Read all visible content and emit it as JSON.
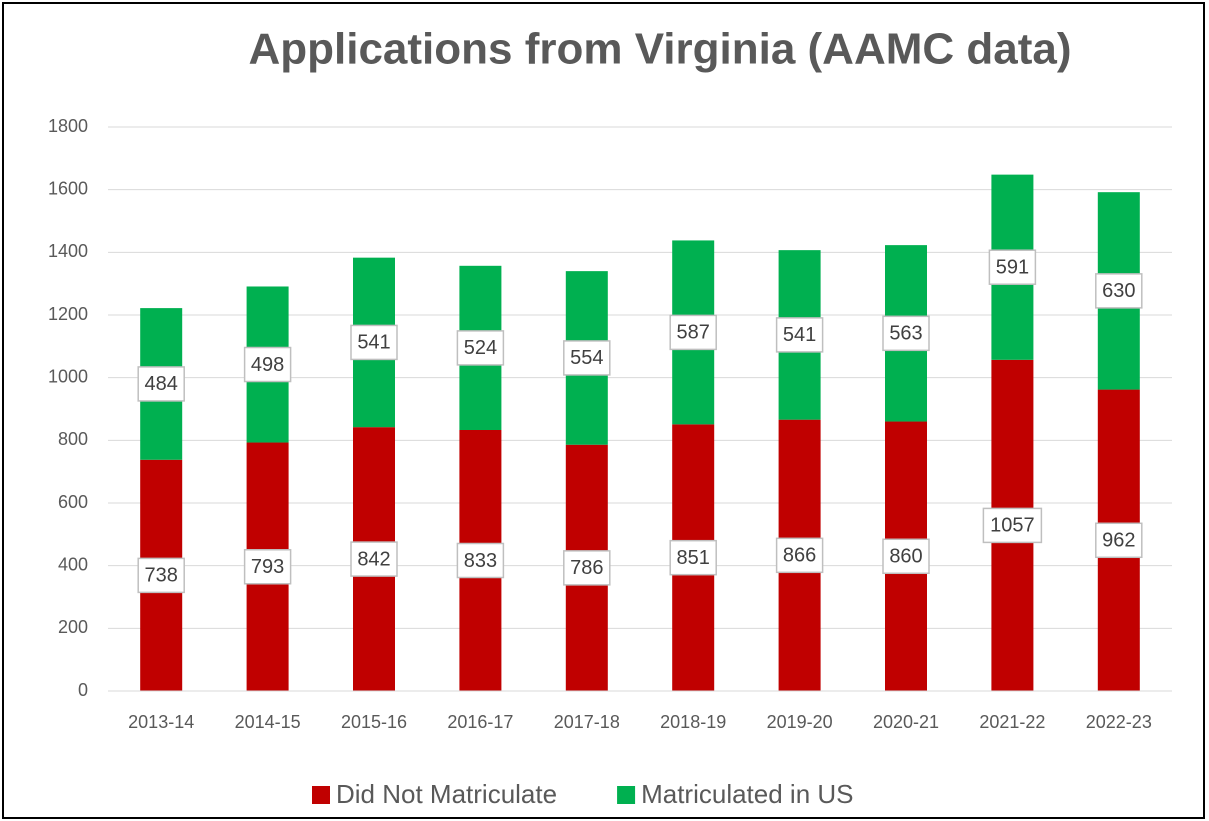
{
  "chart_data": {
    "type": "stacked_bar",
    "title": "Applications from Virginia (AAMC data)",
    "categories": [
      "2013-14",
      "2014-15",
      "2015-16",
      "2016-17",
      "2017-18",
      "2018-19",
      "2019-20",
      "2020-21",
      "2021-22",
      "2022-23"
    ],
    "series": [
      {
        "name": "Did Not Matriculate",
        "color": "#c00000",
        "values": [
          738,
          793,
          842,
          833,
          786,
          851,
          866,
          860,
          1057,
          962
        ]
      },
      {
        "name": "Matriculated in US",
        "color": "#00b050",
        "values": [
          484,
          498,
          541,
          524,
          554,
          587,
          541,
          563,
          591,
          630
        ]
      }
    ],
    "ylim": [
      0,
      1800
    ],
    "yticks": [
      0,
      200,
      400,
      600,
      800,
      1000,
      1200,
      1400,
      1600,
      1800
    ],
    "grid": true,
    "legend": "bottom"
  }
}
